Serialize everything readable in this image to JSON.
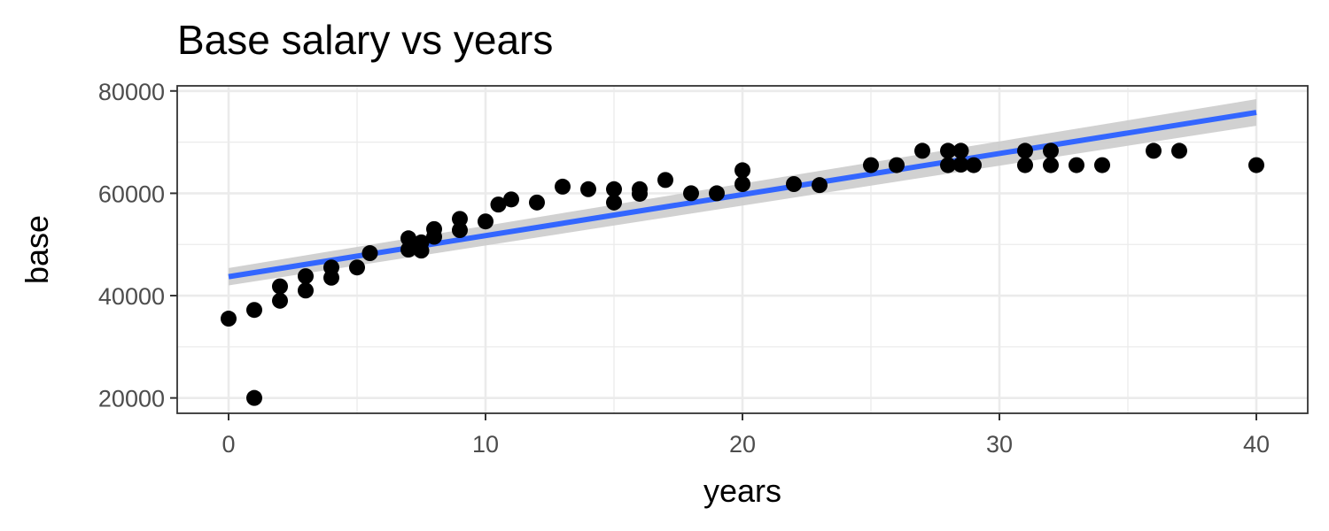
{
  "chart_data": {
    "type": "scatter",
    "title": "Base salary vs years",
    "xlabel": "years",
    "ylabel": "base",
    "xlim": [
      -2,
      42
    ],
    "ylim": [
      17000,
      81000
    ],
    "x_ticks": [
      0,
      10,
      20,
      30,
      40
    ],
    "y_ticks": [
      20000,
      40000,
      60000,
      80000
    ],
    "grid": true,
    "colors": {
      "points": "#000000",
      "trend": "#3366FF",
      "band": "#cccccc",
      "grid": "#ebebeb",
      "panel_border": "#333333"
    },
    "series": [
      {
        "type": "points",
        "x": [
          0,
          1,
          1,
          2,
          2,
          3,
          3,
          4,
          4,
          5,
          5.5,
          7,
          7,
          7.5,
          7.5,
          8,
          8,
          9,
          9,
          10,
          10.5,
          11,
          12,
          13,
          14,
          15,
          15,
          16,
          16,
          17,
          18,
          19,
          20,
          20,
          22,
          23,
          25,
          26,
          27,
          28,
          28,
          28.5,
          28.5,
          29,
          31,
          31,
          32,
          32,
          33,
          34,
          36,
          37,
          40
        ],
        "y": [
          35500,
          37200,
          20000,
          41800,
          39000,
          43800,
          41000,
          45500,
          43500,
          45500,
          48300,
          51200,
          49000,
          50400,
          48800,
          53000,
          51500,
          55000,
          52800,
          54500,
          57800,
          58800,
          58200,
          61300,
          60800,
          60800,
          58200,
          60800,
          59900,
          62600,
          60000,
          60000,
          64500,
          61800,
          61800,
          61600,
          65500,
          65500,
          68300,
          68300,
          65500,
          68300,
          65600,
          65500,
          68300,
          65500,
          68300,
          65500,
          65500,
          65500,
          68300,
          68300,
          65500
        ]
      },
      {
        "type": "linear-fit",
        "x": [
          0,
          40
        ],
        "y": [
          43700,
          75800
        ],
        "ci_lower": [
          42000,
          73200
        ],
        "ci_upper": [
          45400,
          78400
        ]
      }
    ]
  }
}
